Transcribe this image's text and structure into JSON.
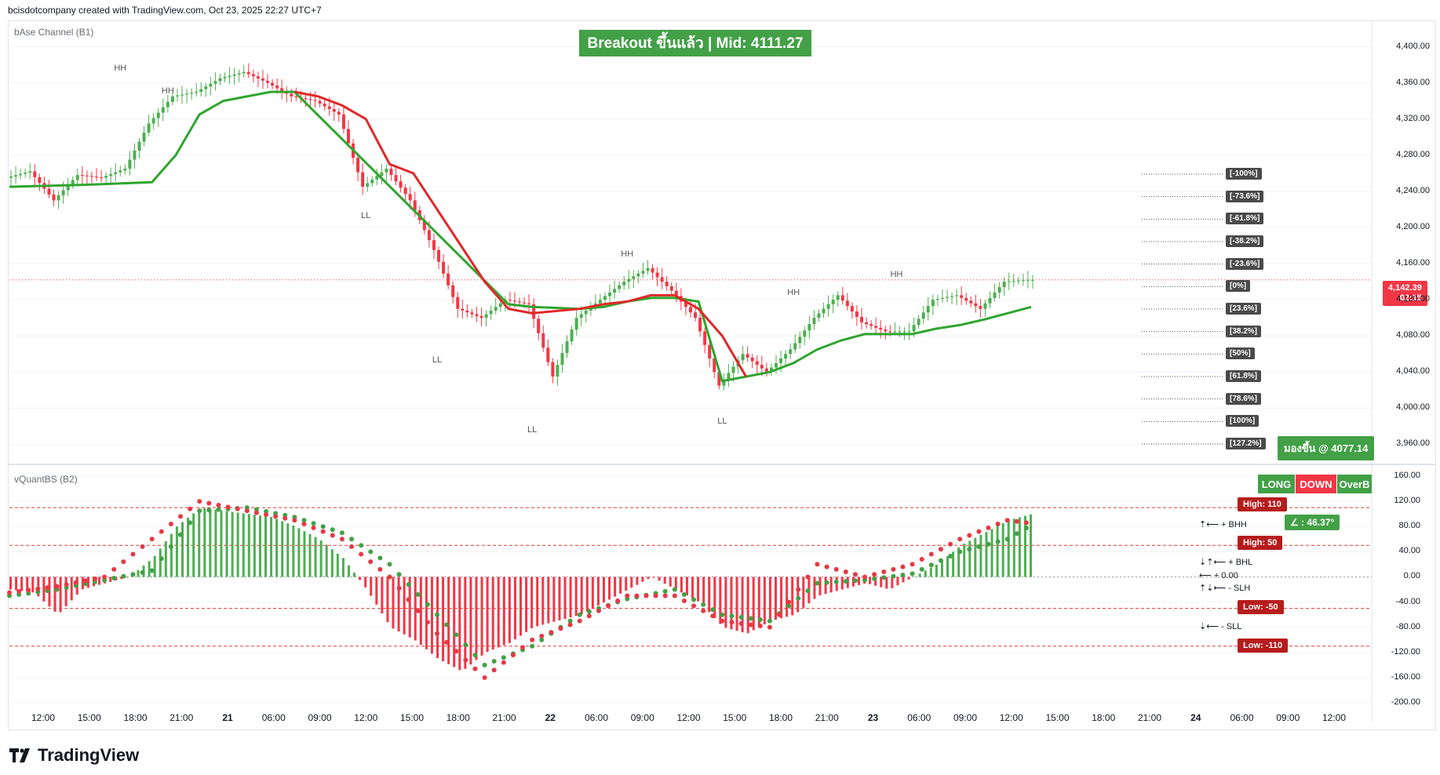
{
  "header": {
    "attribution": "bcisdotcompany created with TradingView.com, Oct 23, 2025 22:27 UTC+7"
  },
  "brand": {
    "name": "TradingView"
  },
  "panes": {
    "upper": {
      "label": "bAse Channel (B1)"
    },
    "lower": {
      "label": "vQuantBS (B2)"
    }
  },
  "banner": {
    "text": "Breakout ขึ้นแล้ว | Mid: 4111.27"
  },
  "look_up": {
    "text": "มองขึ้น @ 4077.14"
  },
  "price_tag": {
    "price": "4,142.39",
    "countdown": "02:15"
  },
  "buttons": {
    "long": "LONG",
    "down": "DOWN",
    "overb": "OverB"
  },
  "angle": {
    "text": "∠ : 46.37°"
  },
  "lines": {
    "high_110": "High: 110",
    "high_50": "High: 50",
    "low_50": "Low: -50",
    "low_110": "Low: -110"
  },
  "legend": {
    "bhh": "⇡⟵ + BHH",
    "bhl": "⇣⇡⟵ + BHL",
    "zero": "⟵ + 0.00",
    "slh": "⇡⇣⟵ - SLH",
    "sll": "⇣⟵ - SLL"
  },
  "fib_levels": [
    "[-100%]",
    "[-73.6%]",
    "[-61.8%]",
    "[-38.2%]",
    "[-23.6%]",
    "[0%]",
    "[23.6%]",
    "[38.2%]",
    "[50%]",
    "[61.8%]",
    "[78.6%]",
    "[100%]",
    "[127.2%]"
  ],
  "colors": {
    "up": "#4caf50",
    "down": "#f23645",
    "bull_line": "#2fa52f",
    "bear_line": "#e02828",
    "accent_green": "#43a047"
  },
  "chart_data": [
    {
      "type": "line",
      "title": "bAse Channel (B1)",
      "ylim": [
        3950,
        4410
      ],
      "y_ticks": [
        3960,
        4000,
        4040,
        4080,
        4120,
        4160,
        4200,
        4240,
        4280,
        4320,
        4360,
        4400
      ],
      "y_tick_labels": [
        "3,960.00",
        "4,000.00",
        "4,040.00",
        "4,080.00",
        "4,120.00",
        "4,160.00",
        "4,200.00",
        "4,240.00",
        "4,280.00",
        "4,320.00",
        "4,360.00",
        "4,400.00"
      ],
      "x_labels": [
        "12:00",
        "15:00",
        "18:00",
        "21:00",
        "21",
        "06:00",
        "09:00",
        "12:00",
        "15:00",
        "18:00",
        "21:00",
        "22",
        "06:00",
        "09:00",
        "12:00",
        "15:00",
        "18:00",
        "21:00",
        "23",
        "06:00",
        "09:00",
        "12:00",
        "15:00",
        "18:00",
        "21:00",
        "24",
        "06:00",
        "09:00",
        "12:00"
      ],
      "x_label_day": [
        false,
        false,
        false,
        false,
        true,
        false,
        false,
        false,
        false,
        false,
        false,
        true,
        false,
        false,
        false,
        false,
        false,
        false,
        true,
        false,
        false,
        false,
        false,
        false,
        false,
        true,
        false,
        false,
        false
      ],
      "series": [
        {
          "name": "price",
          "color": "#131722",
          "x": [
            0,
            3,
            6,
            9,
            12,
            15,
            18,
            21,
            24,
            27,
            30,
            33,
            36,
            39,
            42,
            45,
            48,
            51,
            54,
            57,
            60,
            63,
            66,
            69,
            72,
            75,
            78,
            81,
            84,
            87,
            90,
            93,
            96,
            99,
            102,
            105,
            108,
            111,
            114,
            117,
            120,
            123,
            126,
            129
          ],
          "y": [
            4255,
            4262,
            4230,
            4258,
            4255,
            4265,
            4315,
            4345,
            4350,
            4365,
            4372,
            4360,
            4345,
            4340,
            4325,
            4245,
            4265,
            4230,
            4175,
            4110,
            4100,
            4120,
            4115,
            4035,
            4100,
            4120,
            4140,
            4155,
            4130,
            4100,
            4025,
            4060,
            4040,
            4065,
            4100,
            4125,
            4095,
            4085,
            4085,
            4120,
            4125,
            4110,
            4140,
            4142
          ]
        },
        {
          "name": "channel_bull",
          "color": "#2fa52f",
          "x": [
            0,
            9,
            18,
            21,
            24,
            27,
            30,
            33,
            36,
            63,
            66,
            72,
            75,
            78,
            81,
            84,
            87,
            90,
            93,
            96,
            99,
            102,
            105,
            108,
            111,
            114,
            117,
            120,
            123,
            126,
            129
          ],
          "y": [
            4245,
            4247,
            4250,
            4280,
            4325,
            4340,
            4345,
            4350,
            4350,
            4115,
            4112,
            4110,
            4112,
            4118,
            4122,
            4122,
            4118,
            4030,
            4035,
            4040,
            4050,
            4065,
            4075,
            4082,
            4082,
            4082,
            4088,
            4092,
            4098,
            4105,
            4112
          ]
        },
        {
          "name": "channel_bear",
          "color": "#e02828",
          "x": [
            36,
            39,
            42,
            45,
            48,
            51,
            54,
            57,
            60,
            63,
            66,
            72,
            75,
            78,
            81,
            84,
            87,
            90,
            93
          ],
          "y": [
            4350,
            4345,
            4335,
            4320,
            4270,
            4260,
            4220,
            4180,
            4140,
            4110,
            4105,
            4110,
            4115,
            4118,
            4125,
            4125,
            4110,
            4080,
            4035
          ]
        }
      ]
    },
    {
      "type": "bar",
      "title": "vQuantBS (B2)",
      "ylim": [
        -205,
        165
      ],
      "y_ticks": [
        160,
        120,
        80,
        40,
        0,
        -40,
        -80,
        -120,
        -160,
        -200
      ],
      "y_tick_labels": [
        "160.00",
        "120.00",
        "80.00",
        "40.00",
        "0.00",
        "-40.00",
        "-80.00",
        "-120.00",
        "-160.00",
        "-200.00"
      ],
      "hlines": [
        110,
        50,
        -50,
        -110
      ],
      "series": [
        {
          "name": "histogram",
          "x": [
            0,
            3,
            6,
            9,
            12,
            15,
            18,
            21,
            24,
            27,
            30,
            33,
            36,
            39,
            42,
            45,
            48,
            51,
            54,
            57,
            60,
            63,
            66,
            69,
            72,
            75,
            78,
            81,
            84,
            87,
            90,
            93,
            96,
            99,
            102,
            105,
            108,
            111,
            114,
            117,
            120,
            123,
            126,
            129
          ],
          "y": [
            -20,
            -25,
            -60,
            -20,
            -10,
            0,
            30,
            80,
            110,
            105,
            100,
            95,
            80,
            60,
            30,
            -20,
            -80,
            -100,
            -130,
            -150,
            -120,
            -105,
            -80,
            -70,
            -60,
            -40,
            -20,
            0,
            -20,
            -40,
            -80,
            -90,
            -70,
            -60,
            -30,
            -20,
            -10,
            -20,
            0,
            20,
            50,
            70,
            90,
            100
          ]
        },
        {
          "name": "signal_fast",
          "x": [
            0,
            6,
            12,
            18,
            24,
            30,
            36,
            42,
            48,
            54,
            60,
            66,
            72,
            78,
            84,
            90,
            96,
            102,
            108,
            114,
            120,
            126,
            129
          ],
          "y": [
            -30,
            -20,
            -5,
            10,
            105,
            110,
            95,
            70,
            20,
            -60,
            -140,
            -110,
            -60,
            -35,
            -20,
            -60,
            -70,
            -10,
            -5,
            5,
            40,
            60,
            82
          ]
        },
        {
          "name": "signal_slow",
          "x": [
            0,
            6,
            12,
            18,
            24,
            30,
            36,
            42,
            48,
            54,
            60,
            66,
            72,
            78,
            84,
            90,
            96,
            102,
            108,
            114,
            120,
            126,
            129
          ],
          "y": [
            -25,
            -15,
            0,
            60,
            120,
            105,
            90,
            60,
            0,
            -90,
            -160,
            -100,
            -70,
            -30,
            -30,
            -70,
            -80,
            20,
            0,
            20,
            60,
            90,
            85
          ]
        }
      ]
    }
  ],
  "annotations": {
    "upper_marks": [
      {
        "t": "HH",
        "x": 14,
        "y": 4375
      },
      {
        "t": "HH",
        "x": 20,
        "y": 4350
      },
      {
        "t": "LL",
        "x": 45,
        "y": 4212
      },
      {
        "t": "LL",
        "x": 54,
        "y": 4052
      },
      {
        "t": "LL",
        "x": 66,
        "y": 3975
      },
      {
        "t": "HH",
        "x": 78,
        "y": 4170
      },
      {
        "t": "LL",
        "x": 90,
        "y": 3985
      },
      {
        "t": "HH",
        "x": 99,
        "y": 4127
      },
      {
        "t": "HH",
        "x": 112,
        "y": 4147
      }
    ]
  }
}
